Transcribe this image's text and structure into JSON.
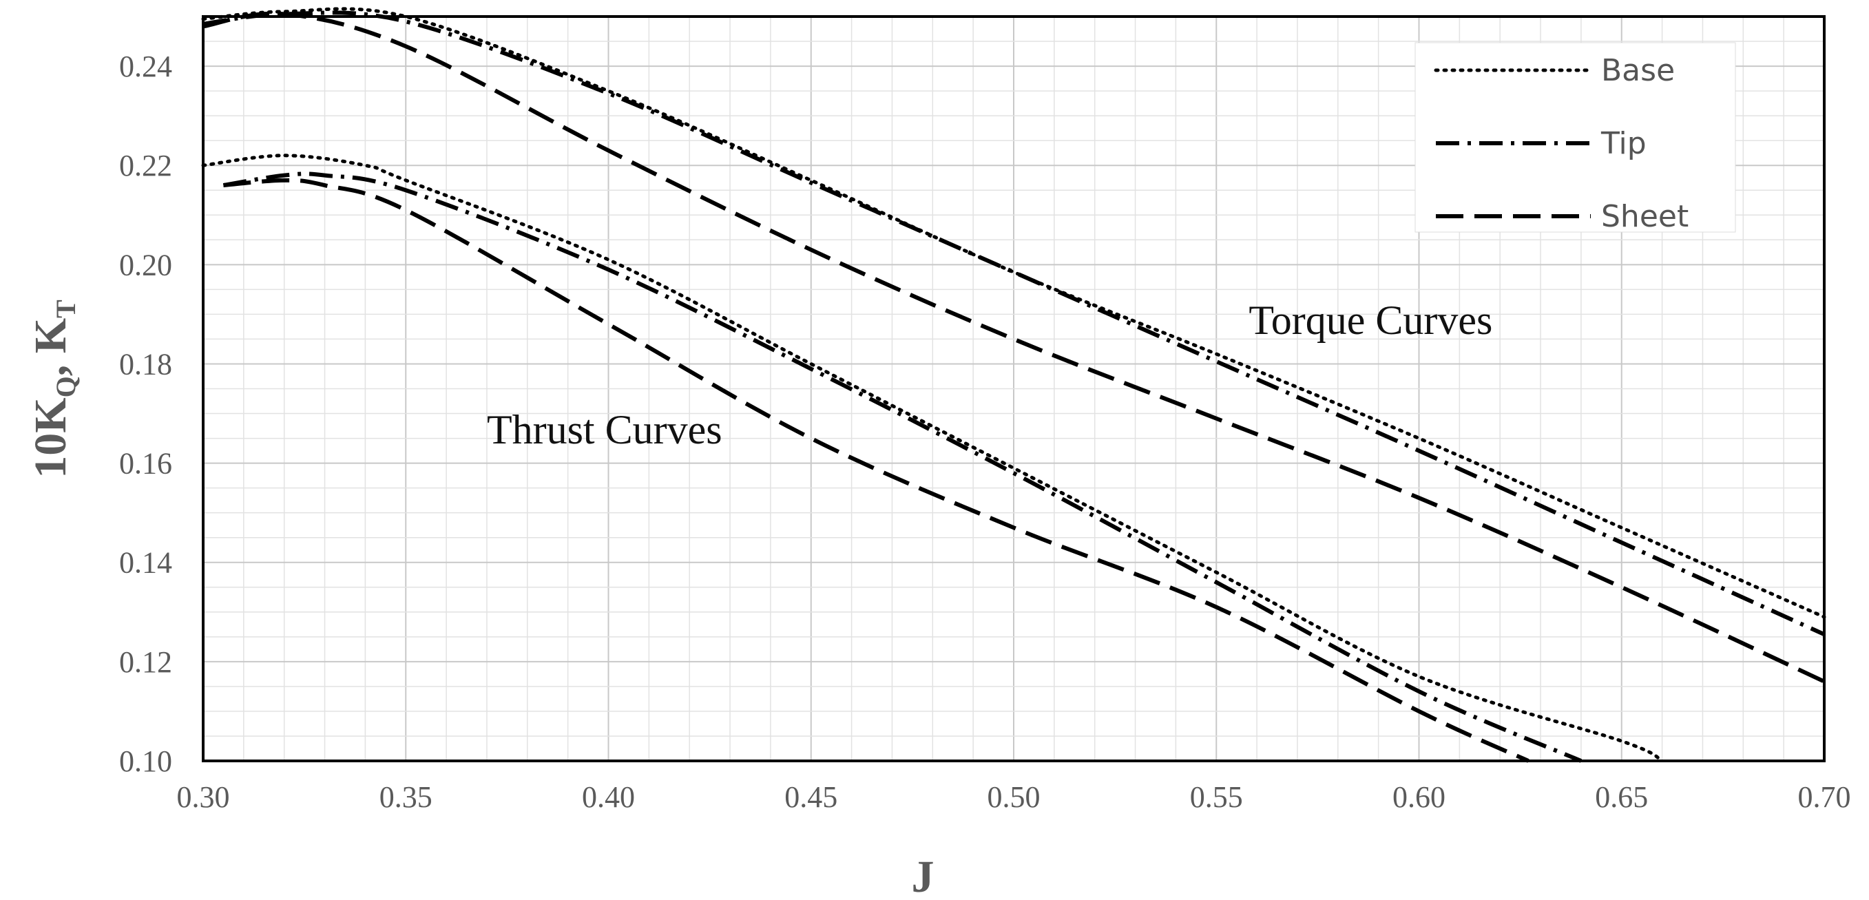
{
  "chart_data": {
    "type": "line",
    "xlabel": "J",
    "ylabel": {
      "main": "10K",
      "sub1": "Q",
      "mid": ", K",
      "sub2": "T"
    },
    "xlim": [
      0.3,
      0.7
    ],
    "ylim": [
      0.1,
      0.25
    ],
    "xticks": [
      "0.30",
      "0.35",
      "0.40",
      "0.45",
      "0.50",
      "0.55",
      "0.60",
      "0.65",
      "0.70"
    ],
    "yticks": [
      "0.10",
      "0.12",
      "0.14",
      "0.16",
      "0.18",
      "0.20",
      "0.22",
      "0.24"
    ],
    "grid": true,
    "legend_position": "top-right",
    "annotations": [
      {
        "text": "Torque Curves",
        "x": 0.558,
        "y": 0.186
      },
      {
        "text": "Thrust Curves",
        "x": 0.37,
        "y": 0.164
      }
    ],
    "series": [
      {
        "name": "Base",
        "style": "dotted",
        "group": "torque",
        "x": [
          0.3,
          0.32,
          0.35,
          0.4,
          0.45,
          0.5,
          0.55,
          0.6,
          0.65,
          0.7
        ],
        "y": [
          0.2495,
          0.251,
          0.25,
          0.235,
          0.217,
          0.1985,
          0.182,
          0.165,
          0.147,
          0.129
        ]
      },
      {
        "name": "Tip",
        "style": "dash-dot",
        "group": "torque",
        "x": [
          0.3,
          0.32,
          0.35,
          0.4,
          0.45,
          0.5,
          0.55,
          0.6,
          0.65,
          0.7
        ],
        "y": [
          0.2485,
          0.2505,
          0.249,
          0.2345,
          0.2165,
          0.1985,
          0.1805,
          0.1625,
          0.144,
          0.1255
        ]
      },
      {
        "name": "Sheet",
        "style": "dashed",
        "group": "torque",
        "x": [
          0.3,
          0.32,
          0.35,
          0.4,
          0.45,
          0.5,
          0.55,
          0.6,
          0.65,
          0.7
        ],
        "y": [
          0.248,
          0.2505,
          0.244,
          0.223,
          0.203,
          0.185,
          0.169,
          0.153,
          0.135,
          0.116
        ]
      },
      {
        "name": "Base",
        "style": "dotted",
        "group": "thrust",
        "x": [
          0.3,
          0.32,
          0.34,
          0.35,
          0.4,
          0.45,
          0.5,
          0.55,
          0.6,
          0.65,
          0.66
        ],
        "y": [
          0.22,
          0.222,
          0.22,
          0.217,
          0.201,
          0.18,
          0.159,
          0.138,
          0.117,
          0.104,
          0.1
        ]
      },
      {
        "name": "Tip",
        "style": "dash-dot",
        "group": "thrust",
        "x": [
          0.305,
          0.32,
          0.33,
          0.35,
          0.4,
          0.45,
          0.5,
          0.55,
          0.6,
          0.64
        ],
        "y": [
          0.216,
          0.218,
          0.218,
          0.215,
          0.199,
          0.179,
          0.158,
          0.136,
          0.114,
          0.1
        ]
      },
      {
        "name": "Sheet",
        "style": "dashed",
        "group": "thrust",
        "x": [
          0.305,
          0.32,
          0.33,
          0.35,
          0.4,
          0.45,
          0.5,
          0.55,
          0.6,
          0.627
        ],
        "y": [
          0.216,
          0.217,
          0.216,
          0.211,
          0.188,
          0.165,
          0.147,
          0.131,
          0.11,
          0.1
        ]
      }
    ]
  }
}
